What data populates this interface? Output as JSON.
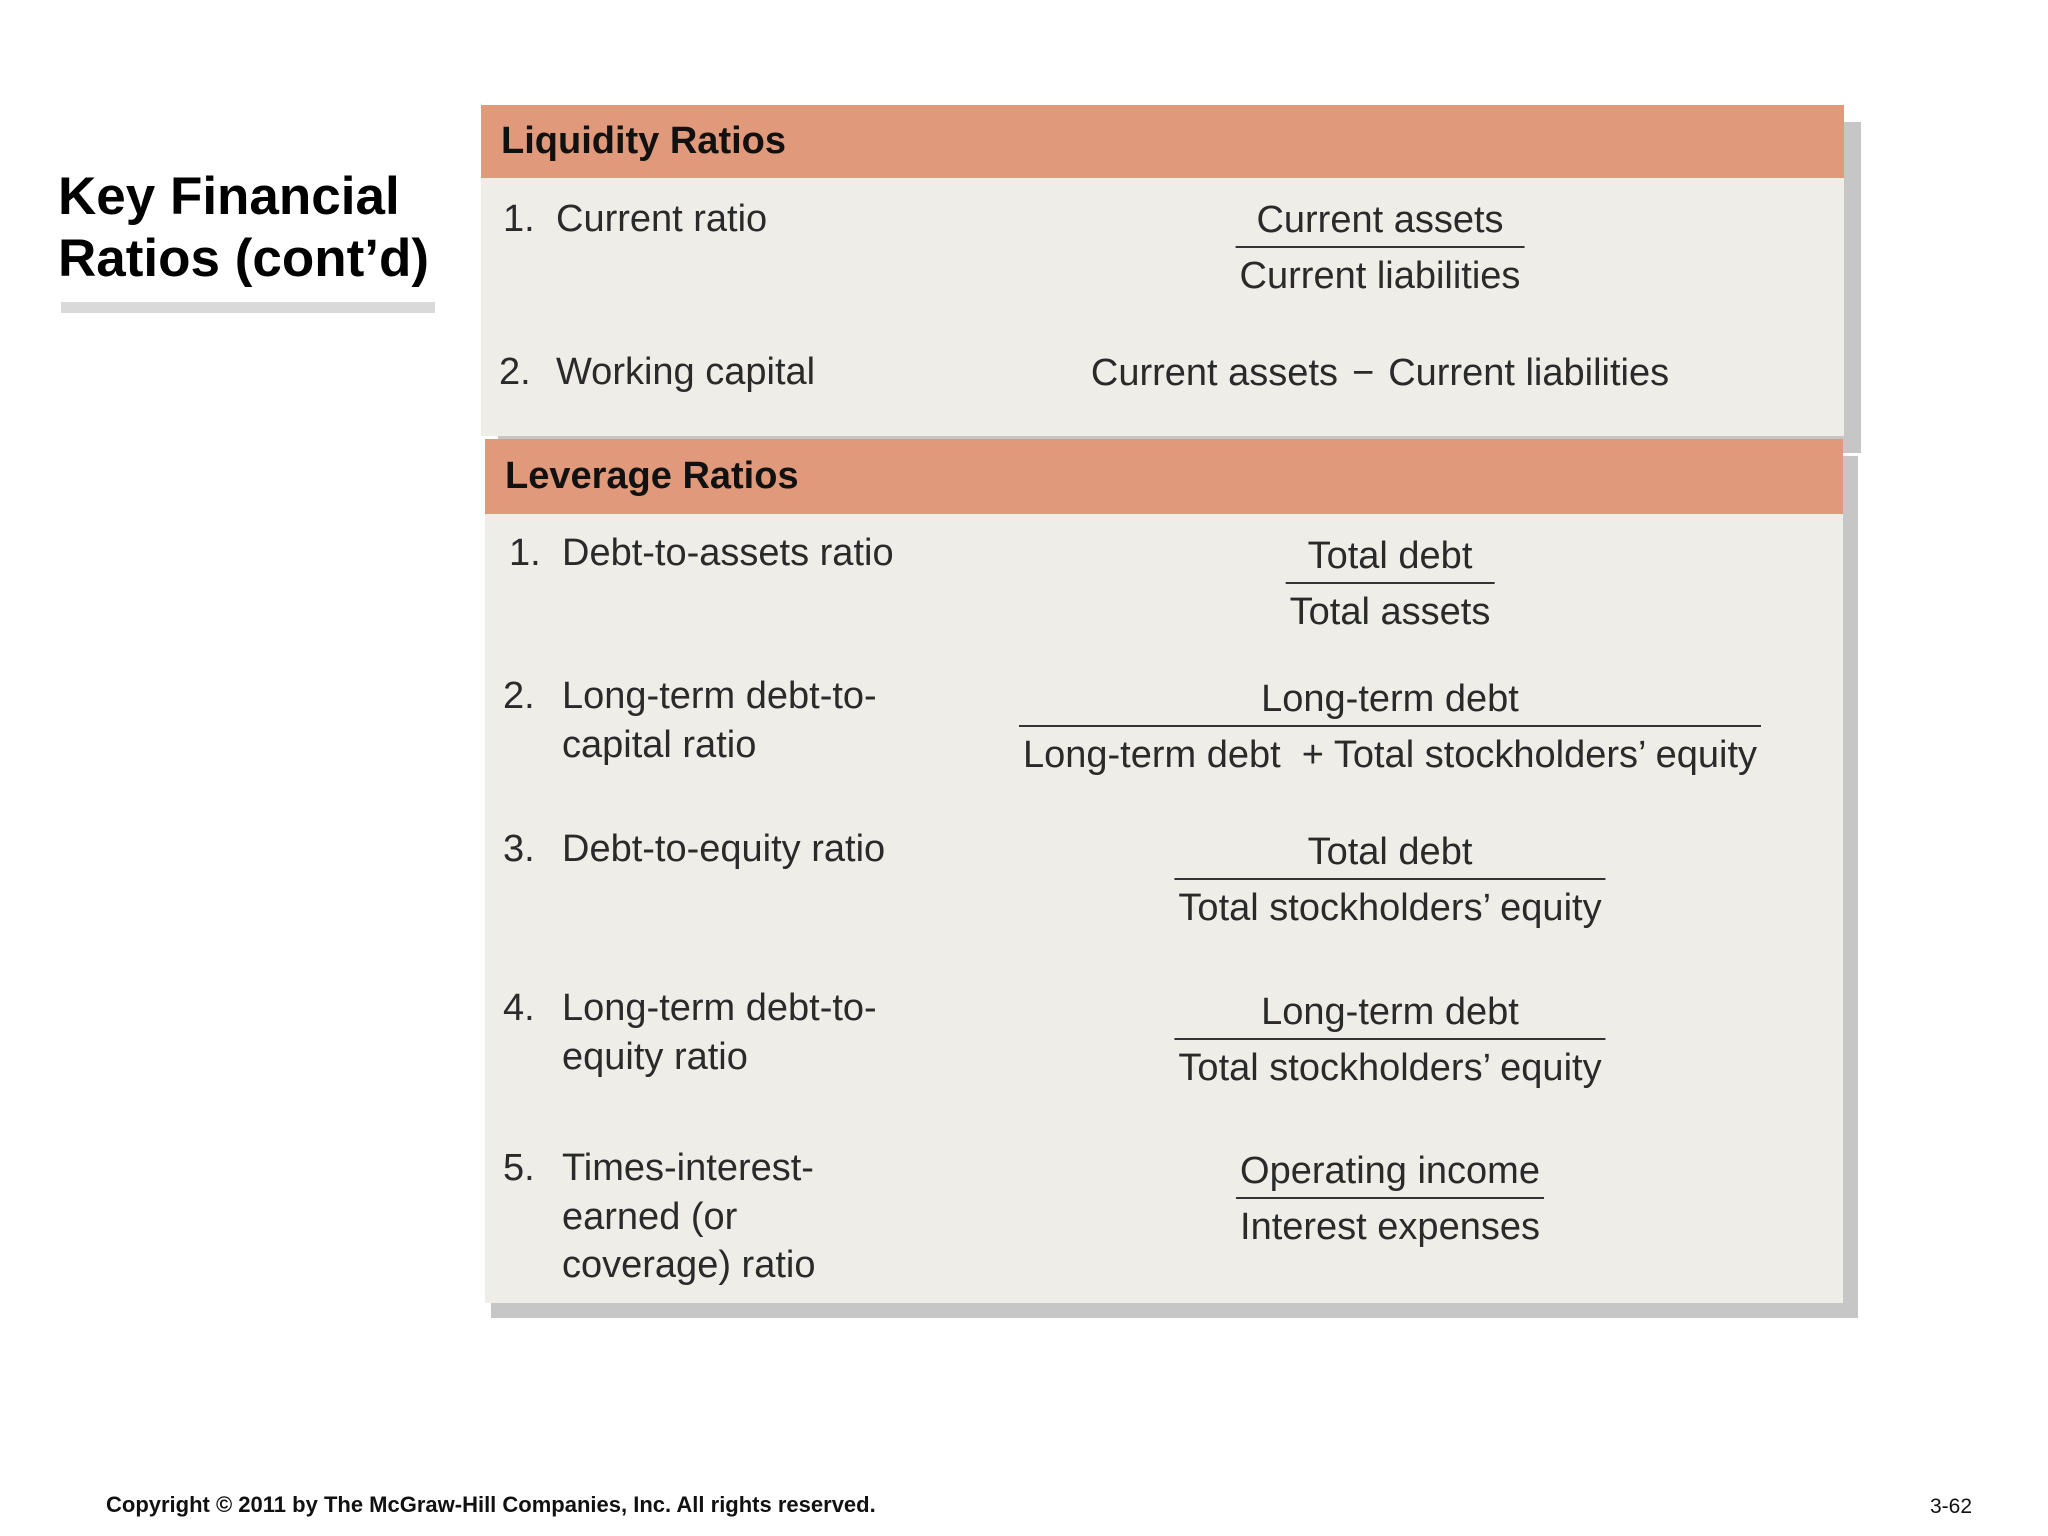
{
  "slide": {
    "title_line1": "Key Financial",
    "title_line2": "Ratios (cont’d)"
  },
  "liquidity": {
    "header": "Liquidity Ratios",
    "items": [
      {
        "num": "1.",
        "label": "Current ratio",
        "numerator": "Current assets",
        "denominator": "Current liabilities"
      },
      {
        "num": "2.",
        "label": "Working capital",
        "expr_left": "Current assets",
        "expr_op": "−",
        "expr_right": "Current liabilities"
      }
    ]
  },
  "leverage": {
    "header": "Leverage Ratios",
    "items": [
      {
        "num": "1.",
        "label": "Debt-to-assets ratio",
        "numerator": "Total debt",
        "denominator": "Total assets"
      },
      {
        "num": "2.",
        "label_line1": "Long-term debt-to-",
        "label_line2": "capital ratio",
        "numerator": "Long-term debt",
        "denominator": "Long-term debt  + Total stockholders’ equity"
      },
      {
        "num": "3.",
        "label": "Debt-to-equity ratio",
        "numerator": "Total debt",
        "denominator": "Total stockholders’ equity"
      },
      {
        "num": "4.",
        "label_line1": "Long-term debt-to-",
        "label_line2": "equity ratio",
        "numerator": "Long-term debt",
        "denominator": "Total stockholders’ equity"
      },
      {
        "num": "5.",
        "label_line1": "Times-interest-",
        "label_line2": "earned (or",
        "label_line3": "coverage) ratio",
        "numerator": "Operating income",
        "denominator": "Interest expenses"
      }
    ]
  },
  "footer": {
    "copyright": "Copyright © 2011 by The McGraw-Hill Companies, Inc. All rights reserved.",
    "page": "3-62"
  },
  "colors": {
    "header_bg": "#e0997a",
    "panel_bg": "#efede7",
    "shadow": "#c6c6c6"
  }
}
